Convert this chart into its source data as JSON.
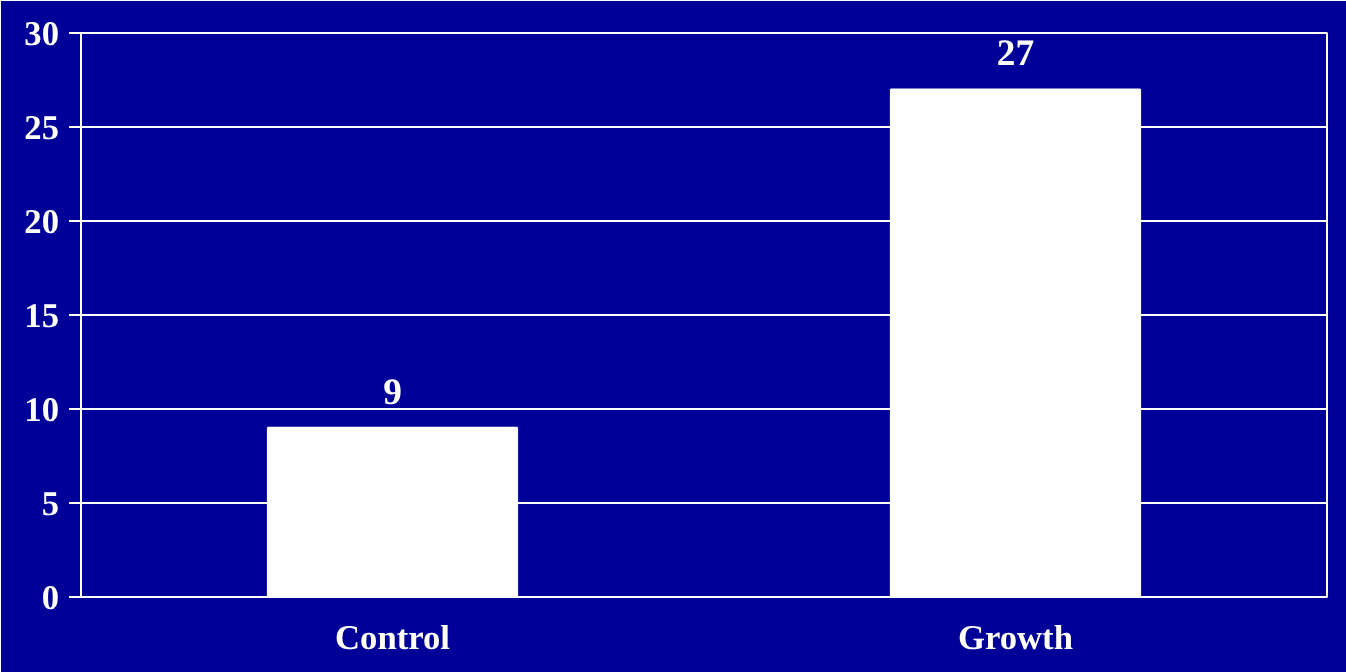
{
  "chart_data": {
    "type": "bar",
    "categories": [
      "Control",
      "Growth"
    ],
    "values": [
      9,
      27
    ],
    "color": "#ffffff",
    "ylim": [
      0,
      30
    ],
    "yticks": [
      0,
      5,
      10,
      15,
      20,
      25,
      30
    ],
    "grid": "y",
    "data_labels": true
  }
}
